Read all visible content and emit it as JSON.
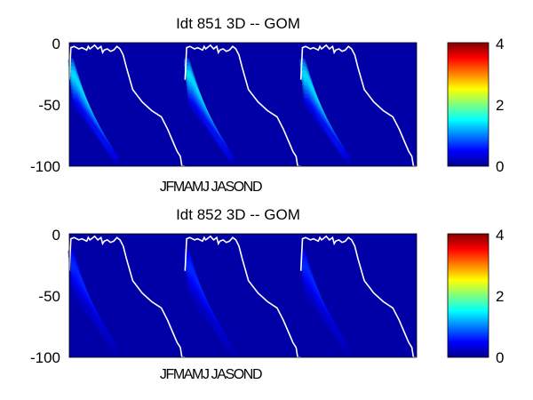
{
  "chart_data": [
    {
      "type": "heatmap",
      "title": "Idt   851 3D   -- GOM",
      "xlabel": "JFMAMJ JASOND",
      "ylabel": "",
      "yticks": [
        "0",
        "-50",
        "-100"
      ],
      "ylim": [
        -100,
        0
      ],
      "colorbar": {
        "ticks": [
          "0",
          "2",
          "4"
        ],
        "range": [
          0,
          4
        ],
        "colormap": "jet"
      },
      "years": 3,
      "background_value": 0.15,
      "plume_peak_value": 1.5,
      "plume": {
        "start_day": [
          5,
          20
        ],
        "end_day": [
          60,
          150
        ],
        "depth_at_start": [
          -15,
          -50
        ],
        "depth_at_end": [
          -60,
          -95
        ]
      },
      "mixed_layer_depth": {
        "x": [
          0,
          5,
          15,
          30,
          40,
          55,
          60,
          65,
          70,
          80,
          90,
          100,
          105,
          110,
          120,
          130,
          140,
          150,
          160,
          170,
          180,
          200,
          230,
          260,
          290,
          310,
          330,
          340,
          350,
          355,
          360,
          365
        ],
        "y": [
          -30,
          -4,
          -3,
          -5,
          -4,
          -6,
          -3,
          -5,
          -4,
          -2,
          -5,
          -3,
          -8,
          -6,
          -5,
          -7,
          -6,
          -3,
          -5,
          -10,
          -20,
          -38,
          -48,
          -55,
          -60,
          -70,
          -82,
          -88,
          -92,
          -100,
          -100,
          -100
        ]
      },
      "colors": {
        "background": "#0a2ccf",
        "line": "#ffffff"
      }
    },
    {
      "type": "heatmap",
      "title": "Idt   852 3D   -- GOM",
      "xlabel": "JFMAMJ JASOND",
      "ylabel": "",
      "yticks": [
        "0",
        "-50",
        "-100"
      ],
      "ylim": [
        -100,
        0
      ],
      "colorbar": {
        "ticks": [
          "0",
          "2",
          "4"
        ],
        "range": [
          0,
          4
        ],
        "colormap": "jet"
      },
      "years": 3,
      "background_value": 0.15,
      "plume_peak_value": 0.7,
      "plume": {
        "start_day": [
          5,
          20
        ],
        "end_day": [
          60,
          150
        ],
        "depth_at_start": [
          -15,
          -50
        ],
        "depth_at_end": [
          -60,
          -95
        ]
      },
      "mixed_layer_depth": {
        "x": [
          0,
          5,
          15,
          30,
          40,
          55,
          60,
          65,
          70,
          80,
          90,
          100,
          105,
          110,
          120,
          130,
          140,
          150,
          160,
          170,
          180,
          200,
          230,
          260,
          290,
          310,
          330,
          340,
          350,
          355,
          360,
          365
        ],
        "y": [
          -30,
          -4,
          -3,
          -5,
          -4,
          -6,
          -3,
          -5,
          -4,
          -2,
          -5,
          -3,
          -8,
          -6,
          -5,
          -7,
          -6,
          -3,
          -5,
          -10,
          -20,
          -38,
          -48,
          -55,
          -60,
          -70,
          -82,
          -88,
          -92,
          -100,
          -100,
          -100
        ]
      },
      "colors": {
        "background": "#0a2ccf",
        "line": "#ffffff"
      }
    }
  ]
}
